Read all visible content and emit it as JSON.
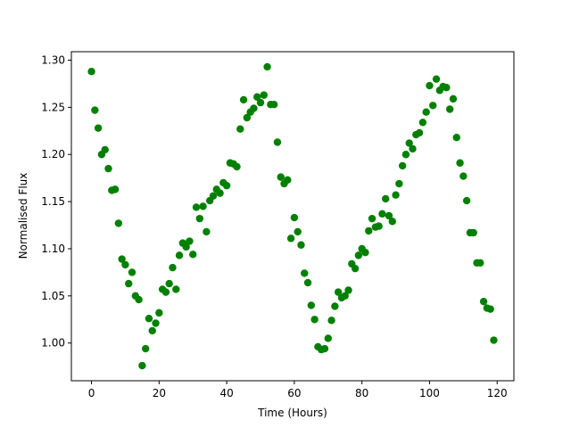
{
  "chart_data": {
    "type": "scatter",
    "x_label": "Time (Hours)",
    "y_label": "Normalised Flux",
    "xlim": [
      -5.95,
      124.95
    ],
    "ylim": [
      0.96,
      1.309
    ],
    "xticks": [
      0,
      20,
      40,
      60,
      80,
      100,
      120
    ],
    "yticks": [
      {
        "value": 1.0,
        "label": "1.00"
      },
      {
        "value": 1.05,
        "label": "1.05"
      },
      {
        "value": 1.1,
        "label": "1.10"
      },
      {
        "value": 1.15,
        "label": "1.15"
      },
      {
        "value": 1.2,
        "label": "1.20"
      },
      {
        "value": 1.25,
        "label": "1.25"
      },
      {
        "value": 1.3,
        "label": "1.30"
      }
    ],
    "color": "#008000",
    "x": [
      0,
      1,
      2,
      3,
      4,
      5,
      6,
      7,
      8,
      9,
      10,
      11,
      12,
      13,
      14,
      15,
      16,
      17,
      18,
      19,
      20,
      21,
      22,
      23,
      24,
      25,
      26,
      27,
      28,
      29,
      30,
      31,
      32,
      33,
      34,
      35,
      36,
      37,
      38,
      39,
      40,
      41,
      42,
      43,
      44,
      45,
      46,
      47,
      48,
      49,
      50,
      51,
      52,
      53,
      54,
      55,
      56,
      57,
      58,
      59,
      60,
      61,
      62,
      63,
      64,
      65,
      66,
      67,
      68,
      69,
      70,
      71,
      72,
      73,
      74,
      75,
      76,
      77,
      78,
      79,
      80,
      81,
      82,
      83,
      84,
      85,
      86,
      87,
      88,
      89,
      90,
      91,
      92,
      93,
      94,
      95,
      96,
      97,
      98,
      99,
      100,
      101,
      102,
      103,
      104,
      105,
      106,
      107,
      108,
      109,
      110,
      111,
      112,
      113,
      114,
      115,
      116,
      117,
      118,
      119
    ],
    "values": [
      1.288,
      1.247,
      1.228,
      1.2,
      1.205,
      1.185,
      1.162,
      1.163,
      1.127,
      1.089,
      1.083,
      1.063,
      1.075,
      1.05,
      1.046,
      0.976,
      0.994,
      1.026,
      1.013,
      1.021,
      1.032,
      1.057,
      1.054,
      1.063,
      1.08,
      1.057,
      1.093,
      1.106,
      1.102,
      1.108,
      1.094,
      1.144,
      1.132,
      1.145,
      1.118,
      1.151,
      1.156,
      1.163,
      1.159,
      1.17,
      1.167,
      1.191,
      1.19,
      1.187,
      1.227,
      1.258,
      1.239,
      1.245,
      1.249,
      1.261,
      1.255,
      1.263,
      1.293,
      1.253,
      1.253,
      1.213,
      1.176,
      1.169,
      1.173,
      1.111,
      1.133,
      1.118,
      1.104,
      1.074,
      1.064,
      1.04,
      1.025,
      0.996,
      0.993,
      0.994,
      1.005,
      1.024,
      1.039,
      1.054,
      1.048,
      1.05,
      1.056,
      1.084,
      1.079,
      1.093,
      1.1,
      1.096,
      1.119,
      1.132,
      1.123,
      1.124,
      1.137,
      1.153,
      1.135,
      1.129,
      1.157,
      1.169,
      1.188,
      1.2,
      1.212,
      1.206,
      1.221,
      1.223,
      1.234,
      1.245,
      1.273,
      1.252,
      1.28,
      1.268,
      1.272,
      1.271,
      1.248,
      1.259,
      1.218,
      1.191,
      1.177,
      1.151,
      1.117,
      1.117,
      1.085,
      1.085,
      1.044,
      1.037,
      1.036,
      1.003
    ]
  }
}
